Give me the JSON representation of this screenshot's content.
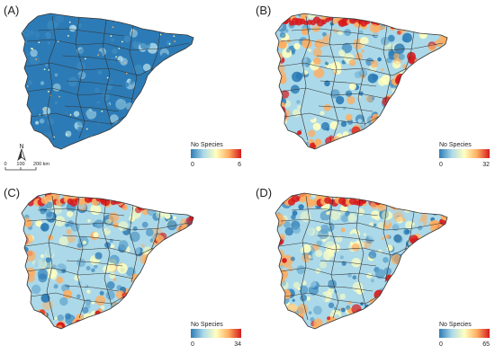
{
  "colors": {
    "low": "#2c7bb6",
    "mid1": "#abd9e9",
    "mid2": "#ffffbf",
    "mid3": "#fdae61",
    "high": "#d7191c",
    "border": "#333333"
  },
  "scale_bar": {
    "ticks": [
      "0",
      "100",
      "200 km"
    ]
  },
  "north_arrow": {
    "label": "N",
    "icon": "north-arrow-icon"
  },
  "panels": [
    {
      "id": "A",
      "label": "(A)",
      "legend_title": "No Species",
      "legend_min": "0",
      "legend_max": "6",
      "hot_coast": 0.05
    },
    {
      "id": "B",
      "label": "(B)",
      "legend_title": "No Species",
      "legend_min": "0",
      "legend_max": "32",
      "hot_coast": 0.85
    },
    {
      "id": "C",
      "label": "(C)",
      "legend_title": "No Species",
      "legend_min": "0",
      "legend_max": "34",
      "hot_coast": 0.55
    },
    {
      "id": "D",
      "label": "(D)",
      "legend_title": "No Species",
      "legend_min": "0",
      "legend_max": "65",
      "hot_coast": 0.7
    }
  ]
}
